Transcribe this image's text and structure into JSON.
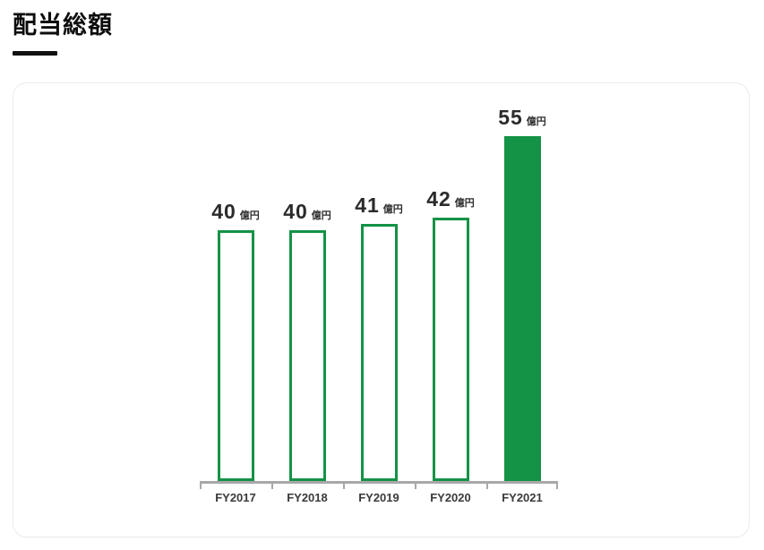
{
  "title": "配当総額",
  "chart_data": {
    "type": "bar",
    "title": "配当総額",
    "unit": "億円",
    "categories": [
      "FY2017",
      "FY2018",
      "FY2019",
      "FY2020",
      "FY2021"
    ],
    "values": [
      40,
      40,
      41,
      42,
      55
    ],
    "highlight_index": 4,
    "ylim": [
      0,
      55
    ],
    "xlabel": "",
    "ylabel": "",
    "grid": false,
    "legend": "none",
    "bar_style": "outlined bars for FY2017-FY2020, solid filled bar for FY2021",
    "colors": {
      "bar_green": "#149246",
      "axis_gray": "#a8a8a8",
      "label_dark": "#2b2b2b",
      "title_black": "#0d0d0d"
    }
  }
}
